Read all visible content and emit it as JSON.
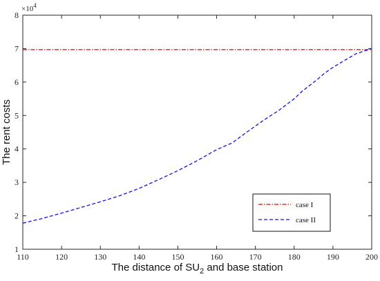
{
  "chart_data": {
    "type": "line",
    "xlabel": "The distance of SU₂ and base station",
    "xlabel_main": "The distance of SU",
    "xlabel_sub": "2",
    "xlabel_tail": " and base station",
    "ylabel": "The rent costs",
    "y_multiplier": "×10⁴",
    "y_multiplier_base": "×10",
    "y_multiplier_exp": "4",
    "xlim": [
      110,
      200
    ],
    "ylim": [
      1,
      8
    ],
    "xticks": [
      "110",
      "120",
      "130",
      "140",
      "150",
      "160",
      "170",
      "180",
      "190",
      "200"
    ],
    "yticks": [
      "1",
      "2",
      "3",
      "4",
      "5",
      "6",
      "7",
      "8"
    ],
    "grid": false,
    "legend_position": "bottom-right",
    "series": [
      {
        "name": "case I",
        "color": "#e00000",
        "style": "dash-dot",
        "x": [
          110,
          200
        ],
        "y": [
          6.97,
          6.97
        ]
      },
      {
        "name": "case II",
        "color": "#1010e8",
        "style": "dashed",
        "x": [
          110,
          115,
          120,
          125,
          130,
          135,
          140,
          145,
          150,
          155,
          160,
          164,
          168,
          172,
          176,
          180,
          182,
          186,
          188,
          190,
          192,
          196,
          200
        ],
        "y": [
          1.78,
          1.92,
          2.08,
          2.25,
          2.42,
          2.6,
          2.82,
          3.08,
          3.35,
          3.65,
          3.98,
          4.18,
          4.52,
          4.85,
          5.15,
          5.5,
          5.72,
          6.08,
          6.28,
          6.44,
          6.58,
          6.85,
          7.0
        ]
      }
    ]
  }
}
